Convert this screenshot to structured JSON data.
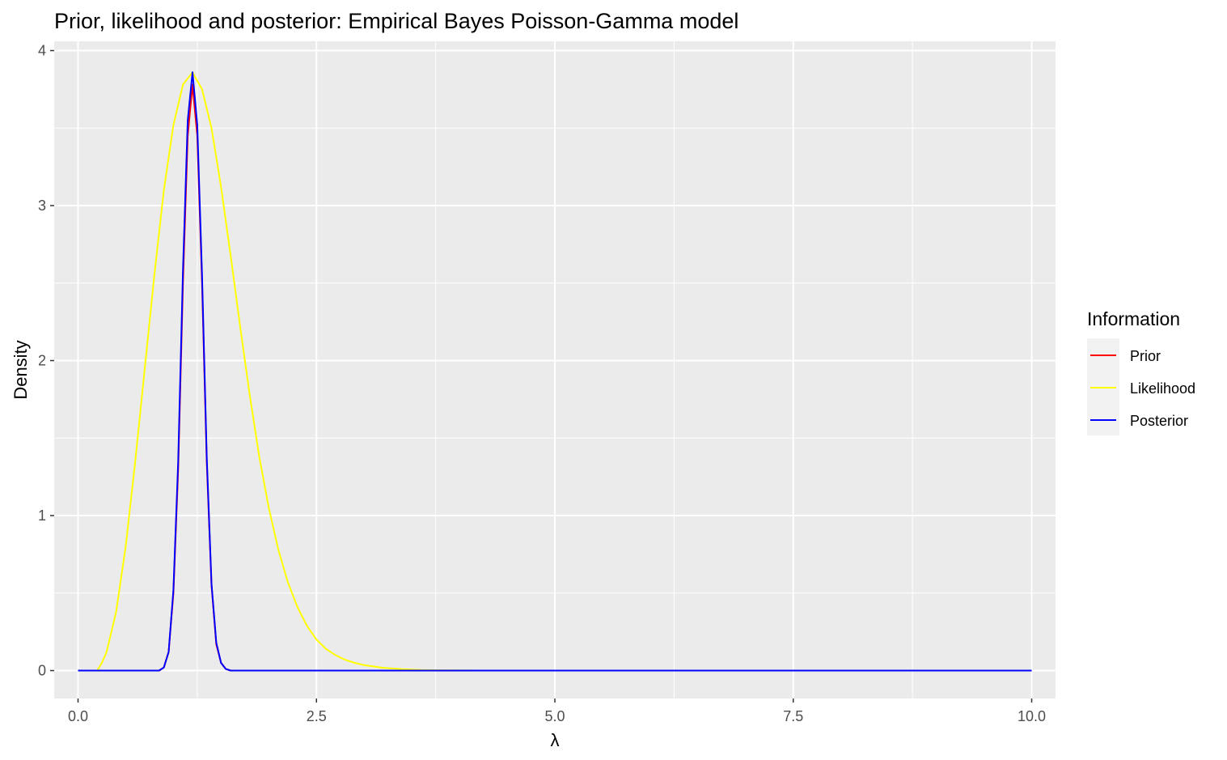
{
  "chart_data": {
    "type": "line",
    "title": "Prior, likelihood and posterior: Empirical Bayes Poisson-Gamma model",
    "xlabel": "λ",
    "ylabel": "Density",
    "xlim": [
      -0.25,
      10.25
    ],
    "ylim": [
      -0.18,
      4.06
    ],
    "x_ticks": [
      0,
      2.5,
      5,
      7.5,
      10
    ],
    "x_tick_labels": [
      "0.0",
      "2.5",
      "5.0",
      "7.5",
      "10.0"
    ],
    "y_ticks": [
      0,
      1,
      2,
      3,
      4
    ],
    "y_tick_labels": [
      "0",
      "1",
      "2",
      "3",
      "4"
    ],
    "x_minor_ticks": [
      1.25,
      3.75,
      6.25,
      8.75
    ],
    "y_minor_ticks": [
      0.5,
      1.5,
      2.5,
      3.5
    ],
    "grid": true,
    "legend": {
      "title": "Information",
      "position": "right"
    },
    "series": [
      {
        "name": "Prior",
        "color": "#ff0000",
        "x": [
          0.0,
          0.85,
          0.9,
          0.95,
          1.0,
          1.05,
          1.1,
          1.15,
          1.2,
          1.25,
          1.3,
          1.35,
          1.4,
          1.45,
          1.5,
          1.55,
          1.6,
          1.65,
          2.0,
          10.0
        ],
        "y": [
          0.0,
          0.0,
          0.02,
          0.12,
          0.5,
          1.3,
          2.5,
          3.45,
          3.78,
          3.45,
          2.5,
          1.35,
          0.55,
          0.17,
          0.05,
          0.01,
          0.0,
          0.0,
          0.0,
          0.0
        ]
      },
      {
        "name": "Likelihood",
        "color": "#ffff00",
        "x": [
          0.0,
          0.2,
          0.25,
          0.3,
          0.4,
          0.5,
          0.6,
          0.7,
          0.8,
          0.9,
          1.0,
          1.1,
          1.2,
          1.3,
          1.4,
          1.5,
          1.6,
          1.7,
          1.8,
          1.9,
          2.0,
          2.1,
          2.2,
          2.3,
          2.4,
          2.5,
          2.6,
          2.7,
          2.8,
          2.9,
          3.0,
          3.2,
          3.4,
          3.6,
          3.8,
          4.0,
          4.2,
          5.0,
          10.0
        ],
        "y": [
          0.0,
          0.0,
          0.05,
          0.12,
          0.38,
          0.8,
          1.35,
          1.95,
          2.55,
          3.1,
          3.52,
          3.78,
          3.86,
          3.75,
          3.5,
          3.12,
          2.68,
          2.22,
          1.78,
          1.38,
          1.05,
          0.78,
          0.57,
          0.41,
          0.29,
          0.2,
          0.14,
          0.1,
          0.07,
          0.05,
          0.035,
          0.018,
          0.009,
          0.004,
          0.002,
          0.001,
          0.0,
          0.0,
          0.0
        ]
      },
      {
        "name": "Posterior",
        "color": "#0000ff",
        "x": [
          0.0,
          0.85,
          0.9,
          0.95,
          1.0,
          1.05,
          1.1,
          1.15,
          1.2,
          1.25,
          1.3,
          1.35,
          1.4,
          1.45,
          1.5,
          1.55,
          1.6,
          1.65,
          2.0,
          10.0
        ],
        "y": [
          0.0,
          0.0,
          0.02,
          0.12,
          0.52,
          1.35,
          2.58,
          3.55,
          3.86,
          3.52,
          2.55,
          1.38,
          0.56,
          0.18,
          0.05,
          0.01,
          0.0,
          0.0,
          0.0,
          0.0
        ]
      }
    ]
  }
}
